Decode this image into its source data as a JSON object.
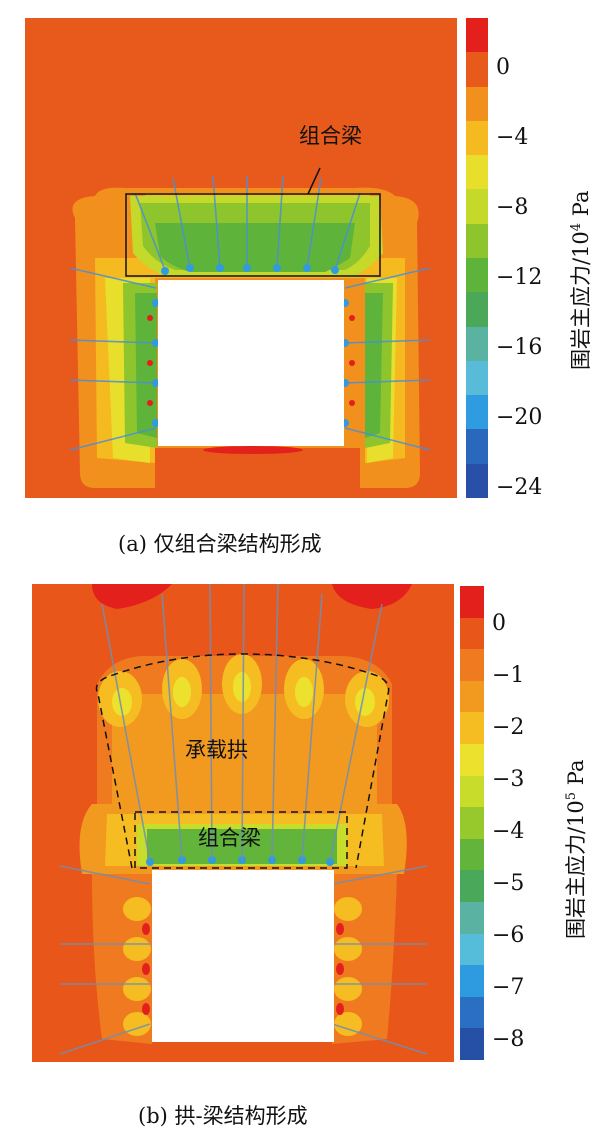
{
  "panel_a": {
    "caption": "(a) 仅组合梁结构形成",
    "annotation": "组合梁",
    "colorbar": {
      "label_main": "围岩主应力/10",
      "label_exp": "4",
      "label_unit": " Pa",
      "ticks": [
        "0",
        "−4",
        "−8",
        "−12",
        "−16",
        "−20",
        "−24"
      ],
      "colors": [
        "#e3201b",
        "#e85a1c",
        "#f2901e",
        "#f5ba1f",
        "#e8df2c",
        "#c4d92a",
        "#8ec52d",
        "#5eb43a",
        "#4aa858",
        "#5ab3a0",
        "#58bcd8",
        "#2f9be0",
        "#2968bd",
        "#2850a8"
      ]
    }
  },
  "panel_b": {
    "caption": "(b) 拱-梁结构形成",
    "annotation_arch": "承载拱",
    "annotation_beam": "组合梁",
    "colorbar": {
      "label_main": "围岩主应力/10",
      "label_exp": "5",
      "label_unit": " Pa",
      "ticks": [
        "0",
        "−1",
        "−2",
        "−3",
        "−4",
        "−5",
        "−6",
        "−7",
        "−8"
      ],
      "colors": [
        "#e3201b",
        "#e8561a",
        "#ef7a1f",
        "#f29a1f",
        "#f5bd21",
        "#ece22e",
        "#c7dc2b",
        "#97c92c",
        "#62b53a",
        "#4aa85a",
        "#5ab3a2",
        "#55bcd9",
        "#2e9ae0",
        "#2a6fc4",
        "#2650a6"
      ]
    }
  }
}
